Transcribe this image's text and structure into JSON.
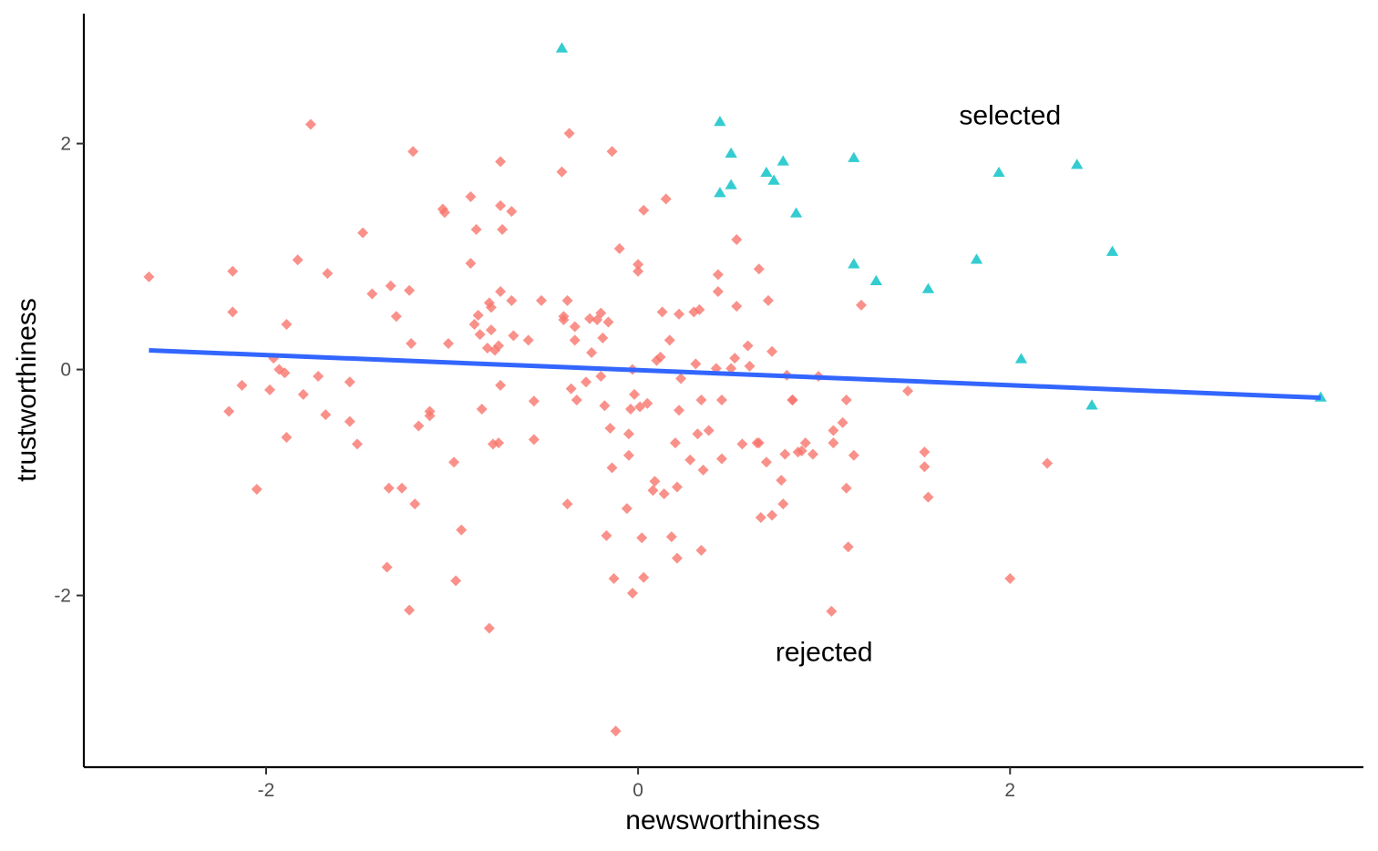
{
  "chart_data": {
    "type": "scatter",
    "title": "",
    "xlabel": "newsworthiness",
    "ylabel": "trustworthiness",
    "xlim": [
      -2.98,
      3.9
    ],
    "ylim": [
      -3.52,
      3.15
    ],
    "xticks": [
      -2,
      0,
      2
    ],
    "yticks": [
      -2,
      0,
      2
    ],
    "xtick_labels": [
      "-2",
      "0",
      "2"
    ],
    "ytick_labels": [
      "-2",
      "0",
      "2"
    ],
    "grid": false,
    "legend": "none",
    "annotations": [
      {
        "text": "selected",
        "x": 2.0,
        "y": 2.25
      },
      {
        "text": "rejected",
        "x": 1.0,
        "y": -2.5
      }
    ],
    "trend_line": {
      "color": "#3366FF",
      "x": [
        -2.63,
        3.67
      ],
      "y": [
        0.17,
        -0.25
      ]
    },
    "series": [
      {
        "marker": "diamond",
        "color": "#F8766D",
        "points": [
          [
            -2.63,
            0.82
          ],
          [
            -2.18,
            0.87
          ],
          [
            -2.18,
            0.51
          ],
          [
            -2.13,
            -0.14
          ],
          [
            -2.2,
            -0.37
          ],
          [
            -2.05,
            -1.06
          ],
          [
            -1.96,
            0.1
          ],
          [
            -1.93,
            0.0
          ],
          [
            -1.9,
            -0.03
          ],
          [
            -1.98,
            -0.18
          ],
          [
            -1.89,
            0.4
          ],
          [
            -1.89,
            -0.6
          ],
          [
            -1.83,
            0.97
          ],
          [
            -1.8,
            -0.22
          ],
          [
            -1.76,
            2.17
          ],
          [
            -1.72,
            -0.06
          ],
          [
            -1.68,
            -0.4
          ],
          [
            -1.67,
            0.85
          ],
          [
            -1.55,
            -0.11
          ],
          [
            -1.55,
            -0.46
          ],
          [
            -1.51,
            -0.66
          ],
          [
            -1.48,
            1.21
          ],
          [
            -1.43,
            0.67
          ],
          [
            -1.35,
            -1.75
          ],
          [
            -1.33,
            0.74
          ],
          [
            -1.34,
            -1.05
          ],
          [
            -1.3,
            0.47
          ],
          [
            -1.27,
            -1.05
          ],
          [
            -1.23,
            0.7
          ],
          [
            -1.22,
            0.23
          ],
          [
            -1.23,
            -2.13
          ],
          [
            -1.21,
            1.93
          ],
          [
            -1.2,
            -1.19
          ],
          [
            -1.18,
            -0.5
          ],
          [
            -1.12,
            -0.37
          ],
          [
            -1.12,
            -0.41
          ],
          [
            -1.05,
            1.42
          ],
          [
            -1.04,
            1.39
          ],
          [
            -1.02,
            0.23
          ],
          [
            -0.99,
            -0.82
          ],
          [
            -0.98,
            -1.87
          ],
          [
            -0.95,
            -1.42
          ],
          [
            -0.9,
            1.53
          ],
          [
            -0.9,
            0.94
          ],
          [
            -0.88,
            0.4
          ],
          [
            -0.87,
            1.24
          ],
          [
            -0.86,
            0.48
          ],
          [
            -0.85,
            0.31
          ],
          [
            -0.84,
            -0.35
          ],
          [
            -0.81,
            0.19
          ],
          [
            -0.8,
            0.59
          ],
          [
            -0.8,
            -2.29
          ],
          [
            -0.79,
            0.55
          ],
          [
            -0.79,
            0.35
          ],
          [
            -0.78,
            -0.66
          ],
          [
            -0.77,
            0.17
          ],
          [
            -0.75,
            0.21
          ],
          [
            -0.75,
            -0.65
          ],
          [
            -0.74,
            0.69
          ],
          [
            -0.74,
            -0.14
          ],
          [
            -0.74,
            1.84
          ],
          [
            -0.74,
            1.45
          ],
          [
            -0.73,
            1.24
          ],
          [
            -0.68,
            1.4
          ],
          [
            -0.68,
            0.61
          ],
          [
            -0.67,
            0.3
          ],
          [
            -0.59,
            0.26
          ],
          [
            -0.56,
            -0.28
          ],
          [
            -0.56,
            -0.62
          ],
          [
            -0.52,
            0.61
          ],
          [
            -0.41,
            1.75
          ],
          [
            -0.4,
            0.47
          ],
          [
            -0.4,
            0.44
          ],
          [
            -0.38,
            0.61
          ],
          [
            -0.37,
            2.09
          ],
          [
            -0.38,
            -1.19
          ],
          [
            -0.36,
            -0.17
          ],
          [
            -0.34,
            0.38
          ],
          [
            -0.34,
            0.26
          ],
          [
            -0.33,
            -0.27
          ],
          [
            -0.28,
            -0.11
          ],
          [
            -0.26,
            0.45
          ],
          [
            -0.25,
            0.15
          ],
          [
            -0.22,
            0.44
          ],
          [
            -0.2,
            -0.06
          ],
          [
            -0.2,
            0.5
          ],
          [
            -0.19,
            0.28
          ],
          [
            -0.18,
            -0.32
          ],
          [
            -0.17,
            -1.47
          ],
          [
            -0.16,
            0.42
          ],
          [
            -0.15,
            -0.52
          ],
          [
            -0.14,
            -0.87
          ],
          [
            -0.14,
            1.93
          ],
          [
            -0.13,
            -1.85
          ],
          [
            -0.12,
            -3.2
          ],
          [
            -0.1,
            1.07
          ],
          [
            -0.06,
            -1.23
          ],
          [
            -0.05,
            -0.76
          ],
          [
            -0.05,
            -0.57
          ],
          [
            -0.04,
            -0.35
          ],
          [
            -0.03,
            -1.98
          ],
          [
            -0.03,
            0.0
          ],
          [
            -0.02,
            -0.22
          ],
          [
            0.0,
            0.93
          ],
          [
            0.0,
            0.87
          ],
          [
            0.01,
            -0.33
          ],
          [
            0.02,
            -1.49
          ],
          [
            0.03,
            -1.84
          ],
          [
            0.03,
            1.41
          ],
          [
            0.05,
            -0.3
          ],
          [
            0.08,
            -1.07
          ],
          [
            0.09,
            -0.99
          ],
          [
            0.1,
            0.08
          ],
          [
            0.12,
            0.11
          ],
          [
            0.13,
            0.51
          ],
          [
            0.14,
            -1.1
          ],
          [
            0.15,
            1.51
          ],
          [
            0.17,
            0.26
          ],
          [
            0.18,
            -1.48
          ],
          [
            0.2,
            -0.65
          ],
          [
            0.21,
            -1.67
          ],
          [
            0.21,
            -1.04
          ],
          [
            0.22,
            -0.36
          ],
          [
            0.22,
            0.49
          ],
          [
            0.23,
            -0.08
          ],
          [
            0.28,
            -0.8
          ],
          [
            0.3,
            0.51
          ],
          [
            0.31,
            0.05
          ],
          [
            0.32,
            -0.57
          ],
          [
            0.33,
            0.53
          ],
          [
            0.34,
            -1.6
          ],
          [
            0.34,
            -0.27
          ],
          [
            0.35,
            -0.89
          ],
          [
            0.38,
            -0.54
          ],
          [
            0.42,
            0.01
          ],
          [
            0.43,
            0.84
          ],
          [
            0.43,
            0.69
          ],
          [
            0.45,
            -0.79
          ],
          [
            0.45,
            -0.27
          ],
          [
            0.5,
            0.01
          ],
          [
            0.52,
            0.1
          ],
          [
            0.53,
            1.15
          ],
          [
            0.53,
            0.56
          ],
          [
            0.56,
            -0.66
          ],
          [
            0.59,
            0.21
          ],
          [
            0.6,
            0.03
          ],
          [
            0.64,
            -0.65
          ],
          [
            0.65,
            -0.65
          ],
          [
            0.65,
            0.89
          ],
          [
            0.66,
            -1.31
          ],
          [
            0.69,
            -0.82
          ],
          [
            0.7,
            0.61
          ],
          [
            0.72,
            -1.29
          ],
          [
            0.72,
            0.16
          ],
          [
            0.77,
            -0.98
          ],
          [
            0.78,
            -1.19
          ],
          [
            0.79,
            -0.75
          ],
          [
            0.8,
            -0.05
          ],
          [
            0.83,
            -0.27
          ],
          [
            0.83,
            -0.27
          ],
          [
            0.86,
            -0.73
          ],
          [
            0.88,
            -0.72
          ],
          [
            0.9,
            -0.65
          ],
          [
            0.94,
            -0.75
          ],
          [
            0.97,
            -0.06
          ],
          [
            1.04,
            -2.14
          ],
          [
            1.05,
            -0.54
          ],
          [
            1.05,
            -0.65
          ],
          [
            1.1,
            -0.47
          ],
          [
            1.12,
            -0.27
          ],
          [
            1.12,
            -1.05
          ],
          [
            1.13,
            -1.57
          ],
          [
            1.16,
            -0.76
          ],
          [
            1.2,
            0.57
          ],
          [
            1.45,
            -0.19
          ],
          [
            1.54,
            -0.73
          ],
          [
            1.54,
            -0.86
          ],
          [
            1.56,
            -1.13
          ],
          [
            2.0,
            -1.85
          ],
          [
            2.2,
            -0.83
          ]
        ]
      },
      {
        "marker": "triangle",
        "color": "#00BFC4",
        "points": [
          [
            -0.41,
            2.84
          ],
          [
            0.44,
            2.19
          ],
          [
            0.5,
            1.91
          ],
          [
            0.44,
            1.56
          ],
          [
            0.5,
            1.63
          ],
          [
            0.69,
            1.74
          ],
          [
            0.73,
            1.67
          ],
          [
            0.78,
            1.84
          ],
          [
            0.85,
            1.38
          ],
          [
            1.16,
            1.87
          ],
          [
            1.16,
            0.93
          ],
          [
            1.28,
            0.78
          ],
          [
            1.56,
            0.71
          ],
          [
            1.82,
            0.97
          ],
          [
            1.94,
            1.74
          ],
          [
            2.06,
            0.09
          ],
          [
            2.36,
            1.81
          ],
          [
            2.44,
            -0.32
          ],
          [
            2.55,
            1.04
          ],
          [
            3.67,
            -0.25
          ]
        ]
      }
    ]
  }
}
